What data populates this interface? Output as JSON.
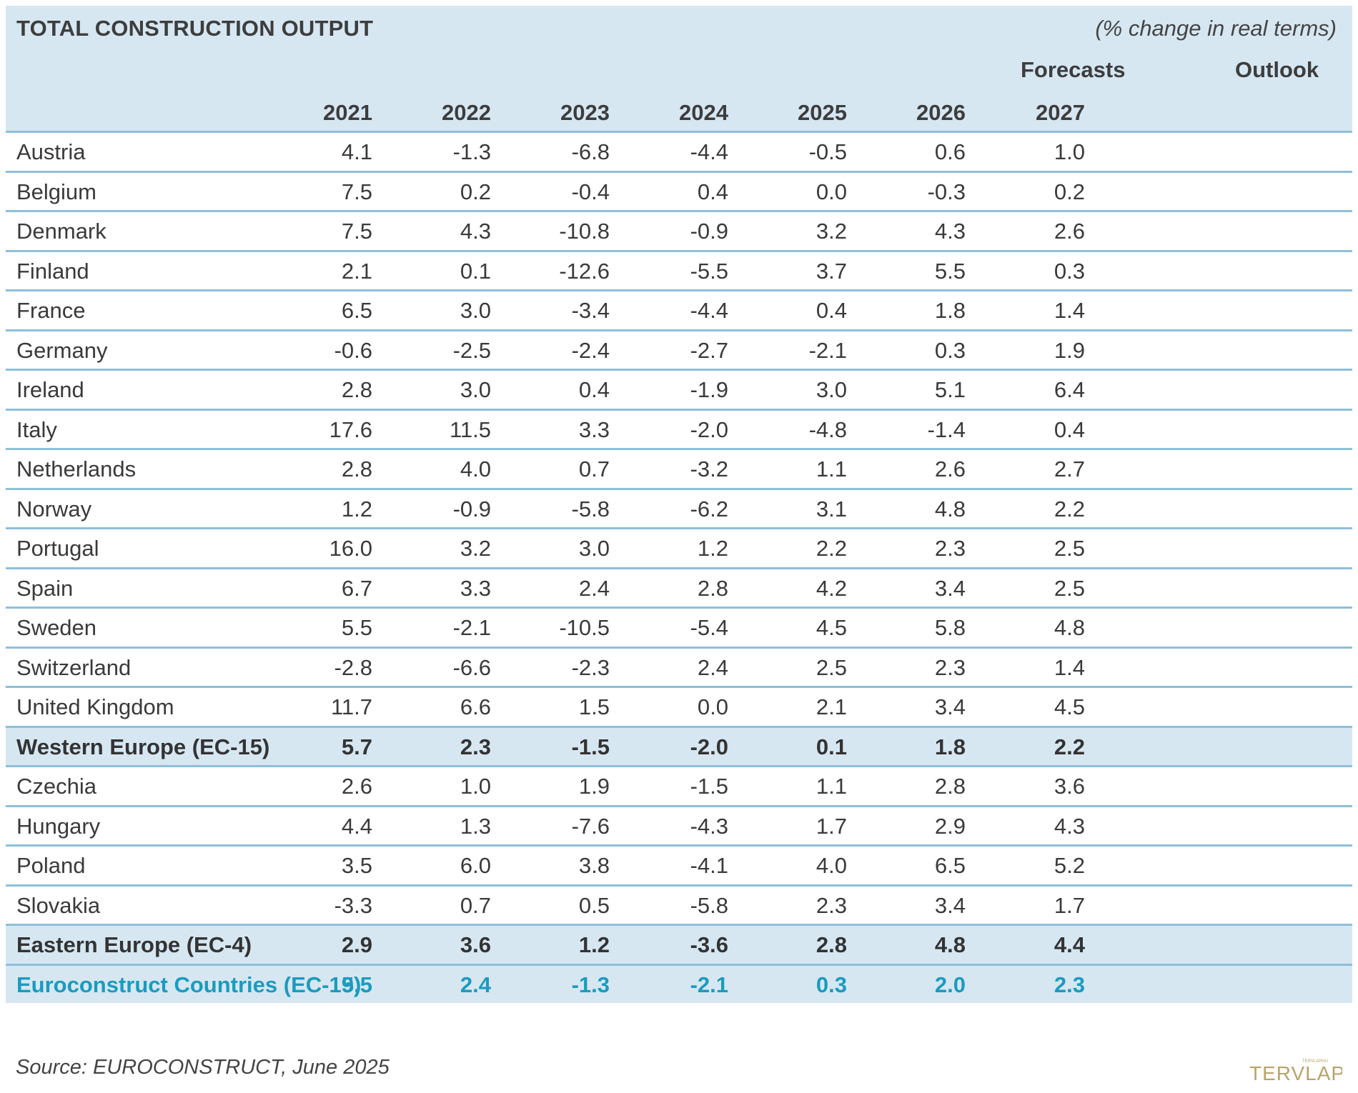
{
  "chart_data": {
    "type": "table",
    "title": "TOTAL CONSTRUCTION OUTPUT",
    "unit_note": "(% change in real terms)",
    "group_labels": {
      "forecasts": "Forecasts",
      "outlook": "Outlook"
    },
    "columns": [
      "2021",
      "2022",
      "2023",
      "2024",
      "2025",
      "2026",
      "2027"
    ],
    "rows": [
      {
        "country": "Austria",
        "kind": "normal",
        "values": [
          "4.1",
          "-1.3",
          "-6.8",
          "-4.4",
          "-0.5",
          "0.6",
          "1.0"
        ]
      },
      {
        "country": "Belgium",
        "kind": "normal",
        "values": [
          "7.5",
          "0.2",
          "-0.4",
          "0.4",
          "0.0",
          "-0.3",
          "0.2"
        ]
      },
      {
        "country": "Denmark",
        "kind": "normal",
        "values": [
          "7.5",
          "4.3",
          "-10.8",
          "-0.9",
          "3.2",
          "4.3",
          "2.6"
        ]
      },
      {
        "country": "Finland",
        "kind": "normal",
        "values": [
          "2.1",
          "0.1",
          "-12.6",
          "-5.5",
          "3.7",
          "5.5",
          "0.3"
        ]
      },
      {
        "country": "France",
        "kind": "normal",
        "values": [
          "6.5",
          "3.0",
          "-3.4",
          "-4.4",
          "0.4",
          "1.8",
          "1.4"
        ]
      },
      {
        "country": "Germany",
        "kind": "normal",
        "values": [
          "-0.6",
          "-2.5",
          "-2.4",
          "-2.7",
          "-2.1",
          "0.3",
          "1.9"
        ]
      },
      {
        "country": "Ireland",
        "kind": "normal",
        "values": [
          "2.8",
          "3.0",
          "0.4",
          "-1.9",
          "3.0",
          "5.1",
          "6.4"
        ]
      },
      {
        "country": "Italy",
        "kind": "normal",
        "values": [
          "17.6",
          "11.5",
          "3.3",
          "-2.0",
          "-4.8",
          "-1.4",
          "0.4"
        ]
      },
      {
        "country": "Netherlands",
        "kind": "normal",
        "values": [
          "2.8",
          "4.0",
          "0.7",
          "-3.2",
          "1.1",
          "2.6",
          "2.7"
        ]
      },
      {
        "country": "Norway",
        "kind": "normal",
        "values": [
          "1.2",
          "-0.9",
          "-5.8",
          "-6.2",
          "3.1",
          "4.8",
          "2.2"
        ]
      },
      {
        "country": "Portugal",
        "kind": "normal",
        "values": [
          "16.0",
          "3.2",
          "3.0",
          "1.2",
          "2.2",
          "2.3",
          "2.5"
        ]
      },
      {
        "country": "Spain",
        "kind": "normal",
        "values": [
          "6.7",
          "3.3",
          "2.4",
          "2.8",
          "4.2",
          "3.4",
          "2.5"
        ]
      },
      {
        "country": "Sweden",
        "kind": "normal",
        "values": [
          "5.5",
          "-2.1",
          "-10.5",
          "-5.4",
          "4.5",
          "5.8",
          "4.8"
        ]
      },
      {
        "country": "Switzerland",
        "kind": "normal",
        "values": [
          "-2.8",
          "-6.6",
          "-2.3",
          "2.4",
          "2.5",
          "2.3",
          "1.4"
        ]
      },
      {
        "country": "United Kingdom",
        "kind": "normal",
        "values": [
          "11.7",
          "6.6",
          "1.5",
          "0.0",
          "2.1",
          "3.4",
          "4.5"
        ]
      },
      {
        "country": "Western Europe (EC-15)",
        "kind": "agg",
        "values": [
          "5.7",
          "2.3",
          "-1.5",
          "-2.0",
          "0.1",
          "1.8",
          "2.2"
        ]
      },
      {
        "country": "Czechia",
        "kind": "normal",
        "values": [
          "2.6",
          "1.0",
          "1.9",
          "-1.5",
          "1.1",
          "2.8",
          "3.6"
        ]
      },
      {
        "country": "Hungary",
        "kind": "normal",
        "values": [
          "4.4",
          "1.3",
          "-7.6",
          "-4.3",
          "1.7",
          "2.9",
          "4.3"
        ]
      },
      {
        "country": "Poland",
        "kind": "normal",
        "values": [
          "3.5",
          "6.0",
          "3.8",
          "-4.1",
          "4.0",
          "6.5",
          "5.2"
        ]
      },
      {
        "country": "Slovakia",
        "kind": "normal",
        "values": [
          "-3.3",
          "0.7",
          "0.5",
          "-5.8",
          "2.3",
          "3.4",
          "1.7"
        ]
      },
      {
        "country": "Eastern Europe (EC-4)",
        "kind": "agg",
        "values": [
          "2.9",
          "3.6",
          "1.2",
          "-3.6",
          "2.8",
          "4.8",
          "4.4"
        ]
      },
      {
        "country": "Euroconstruct Countries (EC-19)",
        "kind": "total",
        "values": [
          "5.5",
          "2.4",
          "-1.3",
          "-2.1",
          "0.3",
          "2.0",
          "2.3"
        ]
      }
    ],
    "source": "Source: EUROCONSTRUCT, June 2025",
    "colors": {
      "header_bg": "#d6e7f2",
      "row_rule": "#8ebfd9",
      "total_text": "#1a9bbf",
      "logo": "#b9a36a"
    }
  },
  "logo": {
    "text": "TERVLAP",
    "small_text": "TERVLAPHU"
  }
}
